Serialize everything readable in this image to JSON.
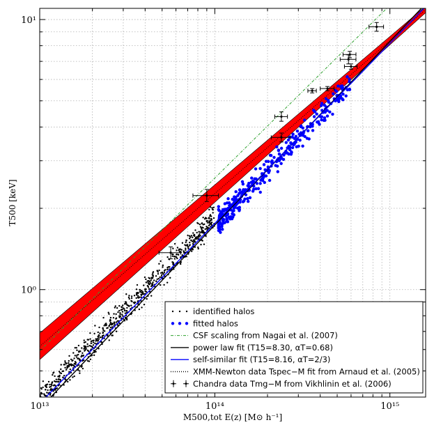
{
  "chart_data": {
    "type": "scatter",
    "xscale": "log",
    "yscale": "log",
    "xlim": [
      10000000000000.0,
      1600000000000000.0
    ],
    "ylim": [
      0.4,
      11
    ],
    "grid": true,
    "legend_position": "lower-right",
    "xlabel": "M500,tot E(z) [M⊙ h⁻¹]",
    "ylabel": "T500 [keV]",
    "x_ticks": [
      {
        "value": 10000000000000.0,
        "label": "10¹³"
      },
      {
        "value": 100000000000000.0,
        "label": "10¹⁴"
      },
      {
        "value": 1000000000000000.0,
        "label": "10¹⁵"
      }
    ],
    "y_ticks": [
      {
        "value": 1,
        "label": "10⁰"
      },
      {
        "value": 10,
        "label": "10¹"
      }
    ],
    "series": [
      {
        "name": "identified halos",
        "kind": "points",
        "color": "#000000",
        "x_range": [
          10000000000000.0,
          100000000000000.0
        ],
        "trend_amplitude": 8.9,
        "trend_slope": 0.68
      },
      {
        "name": "fitted halos",
        "kind": "points",
        "color": "#0000ff",
        "x_range": [
          105000000000000.0,
          590000000000000.0
        ],
        "trend_amplitude": 8.3,
        "trend_slope": 0.68
      },
      {
        "name": "CSF scaling from Nagai et al. (2007)",
        "kind": "dash-dot",
        "color": "#2ca02c",
        "amplitude": 11.3,
        "slope": 0.64
      },
      {
        "name": "power law fit (T15=8.30, αT=0.68)",
        "kind": "line",
        "color": "#000000",
        "amplitude": 8.3,
        "slope": 0.68
      },
      {
        "name": "self-similar fit (T15=8.16, αT=2/3)",
        "kind": "line",
        "color": "#0000ff",
        "amplitude": 8.16,
        "slope": 0.6667
      },
      {
        "name": "XMM-Newton data Tspec−M fit from Arnaud et al. (2005)",
        "kind": "band",
        "color": "#ff0000",
        "upper": [
          [
            10000000000000.0,
            0.69
          ],
          [
            1600000000000000.0,
            11.2
          ]
        ],
        "lower": [
          [
            10000000000000.0,
            0.55
          ],
          [
            1600000000000000.0,
            10.6
          ]
        ]
      },
      {
        "name": "Chandra data Tmg−M from Vikhlinin et al. (2006)",
        "kind": "errorbar",
        "color": "#000000",
        "points": [
          {
            "x": 56000000000000.0,
            "y": 1.37,
            "xerr": [
              48000000000000.0,
              64000000000000.0
            ],
            "yerr": [
              1.3,
              1.44
            ]
          },
          {
            "x": 90000000000000.0,
            "y": 2.23,
            "xerr": [
              75000000000000.0,
              105000000000000.0
            ],
            "yerr": [
              2.12,
              2.35
            ]
          },
          {
            "x": 240000000000000.0,
            "y": 4.37,
            "xerr": [
              220000000000000.0,
              260000000000000.0
            ],
            "yerr": [
              4.2,
              4.55
            ]
          },
          {
            "x": 240000000000000.0,
            "y": 3.66,
            "xerr": [
              210000000000000.0,
              270000000000000.0
            ],
            "yerr": [
              3.52,
              3.8
            ]
          },
          {
            "x": 360000000000000.0,
            "y": 5.45,
            "xerr": [
              340000000000000.0,
              380000000000000.0
            ],
            "yerr": [
              5.35,
              5.55
            ]
          },
          {
            "x": 440000000000000.0,
            "y": 5.55,
            "xerr": [
              400000000000000.0,
              480000000000000.0
            ],
            "yerr": [
              5.45,
              5.65
            ]
          },
          {
            "x": 580000000000000.0,
            "y": 7.12,
            "xerr": [
              520000000000000.0,
              640000000000000.0
            ],
            "yerr": [
              6.85,
              7.4
            ]
          },
          {
            "x": 590000000000000.0,
            "y": 7.42,
            "xerr": [
              540000000000000.0,
              640000000000000.0
            ],
            "yerr": [
              7.22,
              7.62
            ]
          },
          {
            "x": 600000000000000.0,
            "y": 6.7,
            "xerr": [
              550000000000000.0,
              650000000000000.0
            ],
            "yerr": [
              6.55,
              6.85
            ]
          },
          {
            "x": 840000000000000.0,
            "y": 9.4,
            "xerr": [
              760000000000000.0,
              920000000000000.0
            ],
            "yerr": [
              9.05,
              9.75
            ]
          }
        ]
      }
    ]
  }
}
